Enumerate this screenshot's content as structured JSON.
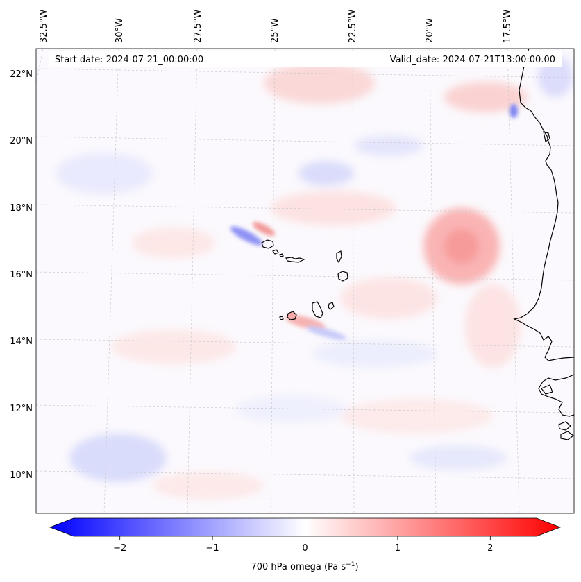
{
  "map": {
    "start_date": "Start date: 2024-07-21_00:00:00",
    "valid_date": "Valid_date: 2024-07-21T13:00:00.00",
    "lon_labels": [
      "32.5°W",
      "30°W",
      "27.5°W",
      "25°W",
      "22.5°W",
      "20°W",
      "17.5°W"
    ],
    "lat_labels": [
      "22°N",
      "20°N",
      "18°N",
      "16°N",
      "14°N",
      "12°N",
      "10°N"
    ],
    "colors": {
      "negative": "#0000ff",
      "positive": "#ff0000",
      "neutral": "#ffffff",
      "coast": "#000000",
      "grid": "#c8c8c8"
    }
  },
  "colorbar": {
    "label": "700 hPa omega (Pa s",
    "label_sup": "−1",
    "label_end": ")",
    "ticks": [
      "−2",
      "−1",
      "0",
      "1",
      "2"
    ],
    "tick_values": [
      -2,
      -1,
      0,
      1,
      2
    ],
    "range": [
      -2.6,
      2.6
    ]
  }
}
